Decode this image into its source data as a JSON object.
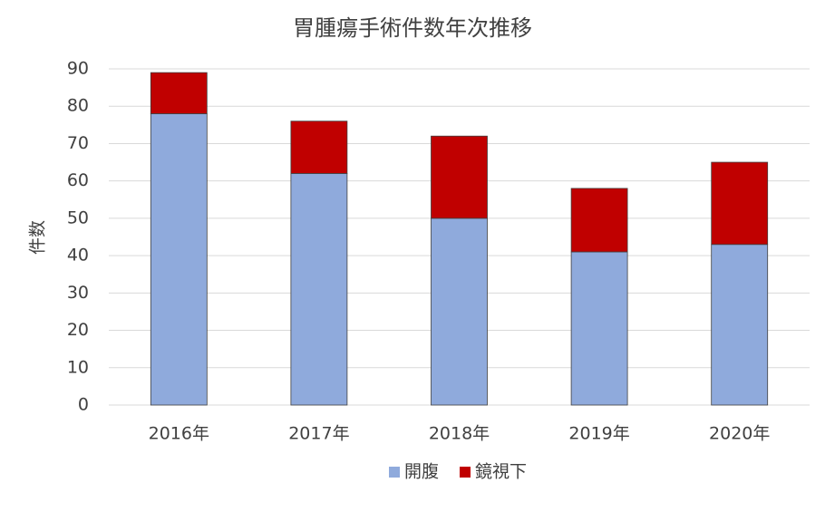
{
  "chart_data": {
    "type": "bar",
    "stacked": true,
    "title": "胃腫瘍手術件数年次推移",
    "y_label": "件数",
    "categories": [
      "2016年",
      "2017年",
      "2018年",
      "2019年",
      "2020年"
    ],
    "series": [
      {
        "name": "開腹",
        "color": "#8faadc",
        "values": [
          78,
          62,
          50,
          41,
          43
        ]
      },
      {
        "name": "鏡視下",
        "color": "#c00000",
        "values": [
          11,
          14,
          22,
          17,
          22
        ]
      }
    ],
    "ylim": [
      0,
      90
    ],
    "yticks": [
      0,
      10,
      20,
      30,
      40,
      50,
      60,
      70,
      80,
      90
    ],
    "grid": true,
    "legend": "bottom"
  }
}
